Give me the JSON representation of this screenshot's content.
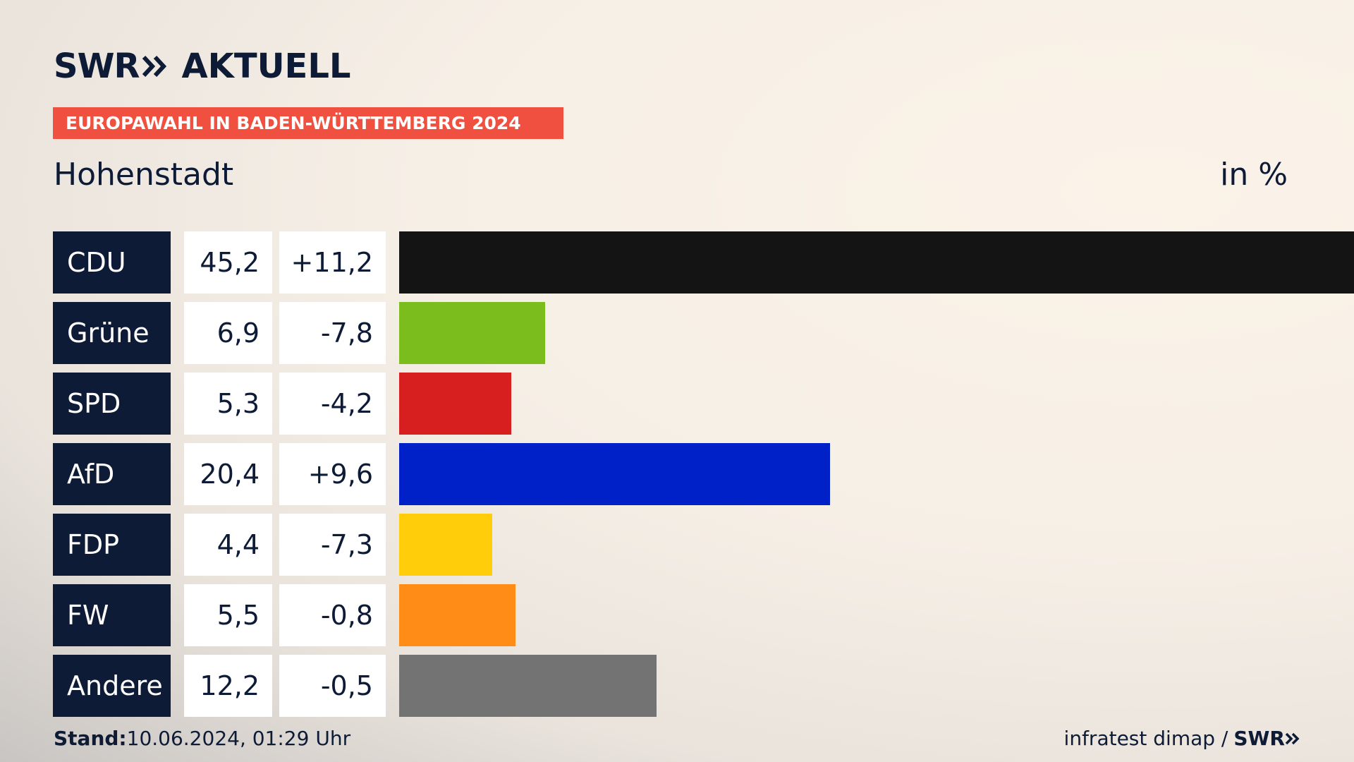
{
  "header": {
    "logo_swr": "SWR",
    "logo_aktuell": "AKTUELL",
    "banner": "EUROPAWAHL IN BADEN-WÜRTTEMBERG 2024",
    "subtitle": "Hohenstadt",
    "unit": "in %"
  },
  "footer": {
    "stand_label": "Stand:",
    "stand_value": "10.06.2024, 01:29 Uhr",
    "source": "infratest dimap /",
    "source_logo": "SWR"
  },
  "chart_data": {
    "type": "bar",
    "orientation": "horizontal",
    "categories": [
      "CDU",
      "Grüne",
      "SPD",
      "AfD",
      "FDP",
      "FW",
      "Andere"
    ],
    "values": [
      45.2,
      6.9,
      5.3,
      20.4,
      4.4,
      5.5,
      12.2
    ],
    "value_labels": [
      "45,2",
      "6,9",
      "5,3",
      "20,4",
      "4,4",
      "5,5",
      "12,2"
    ],
    "diff_labels": [
      "+11,2",
      "-7,8",
      "-4,2",
      "+9,6",
      "-7,3",
      "-0,8",
      "-0,5"
    ],
    "colors": [
      "#141414",
      "#7cbd1e",
      "#d71f1f",
      "#0021c8",
      "#ffcd0a",
      "#ff8c17",
      "#737373"
    ],
    "xlim": [
      0,
      45.2
    ]
  }
}
